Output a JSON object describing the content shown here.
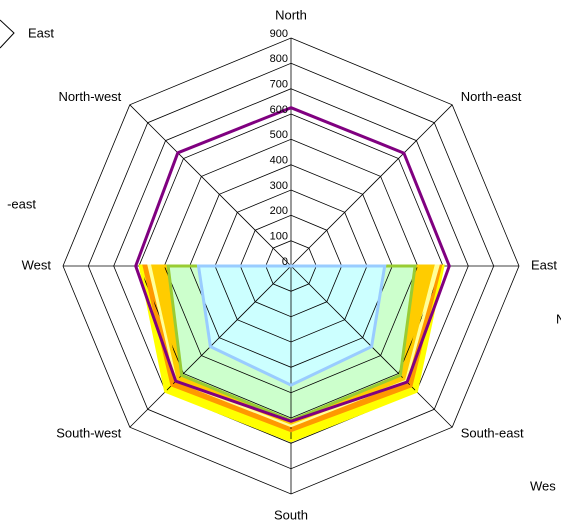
{
  "chart_data": {
    "type": "radar",
    "categories": [
      "North",
      "North-east",
      "East",
      "South-east",
      "South",
      "South-west",
      "West",
      "North-west"
    ],
    "ylim": [
      0,
      900
    ],
    "yticks": [
      0,
      100,
      200,
      300,
      400,
      500,
      600,
      700,
      800,
      900
    ],
    "grid": true,
    "series": [
      {
        "color": "#ffff00",
        "fill": "#ffff00",
        "values": [
          0,
          0,
          600,
          700,
          690,
          700,
          595,
          0
        ]
      },
      {
        "color": "#ff9900",
        "fill": "#ff9900",
        "values": [
          0,
          0,
          590,
          670,
          650,
          665,
          580,
          0
        ]
      },
      {
        "color": "#ffff99",
        "fill": "#ffff99",
        "values": [
          0,
          0,
          580,
          640,
          630,
          640,
          560,
          0
        ]
      },
      {
        "color": "#ffcc00",
        "fill": "#ffcc00",
        "values": [
          0,
          0,
          560,
          630,
          620,
          630,
          545,
          0
        ]
      },
      {
        "color": "#99cc33",
        "fill": "#ccffcc",
        "values": [
          0,
          0,
          490,
          610,
          610,
          610,
          485,
          0
        ]
      },
      {
        "color": "#99ccff",
        "fill": "#ccffff",
        "values": [
          0,
          0,
          370,
          450,
          470,
          450,
          365,
          0
        ]
      },
      {
        "color": "#800080",
        "fill": null,
        "values": [
          625,
          630,
          625,
          648,
          613,
          643,
          613,
          632
        ]
      }
    ]
  },
  "background_fragments": [
    "East",
    "-east",
    "N",
    "Wes"
  ]
}
